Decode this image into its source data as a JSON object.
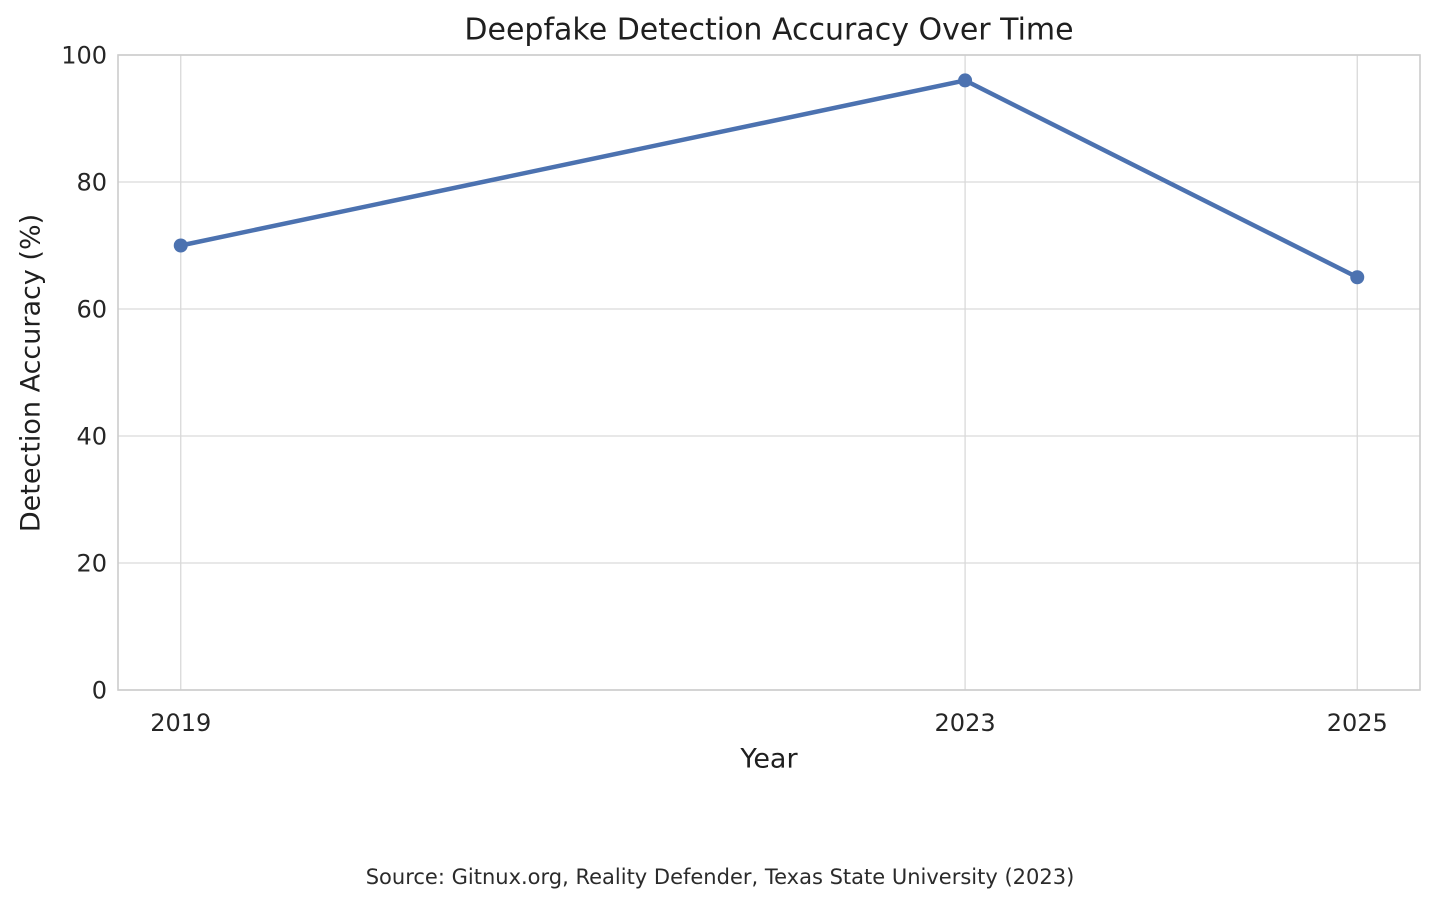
{
  "chart_data": {
    "type": "line",
    "title": "Deepfake Detection Accuracy Over Time",
    "xlabel": "Year",
    "ylabel": "Detection Accuracy (%)",
    "x": [
      2019,
      2023,
      2025
    ],
    "values": [
      70,
      96,
      65
    ],
    "xticks": [
      2019,
      2023,
      2025
    ],
    "yticks": [
      0,
      20,
      40,
      60,
      80,
      100
    ],
    "xlim": [
      2018.68,
      2025.32
    ],
    "ylim": [
      0,
      100
    ],
    "grid": true,
    "legend": "none",
    "line_color": "#4C72B0",
    "grid_color": "#d9d9d9",
    "spine_color": "#cccccc",
    "marker": "circle"
  },
  "source": {
    "text": "Source: Gitnux.org, Reality Defender, Texas State University (2023)"
  }
}
